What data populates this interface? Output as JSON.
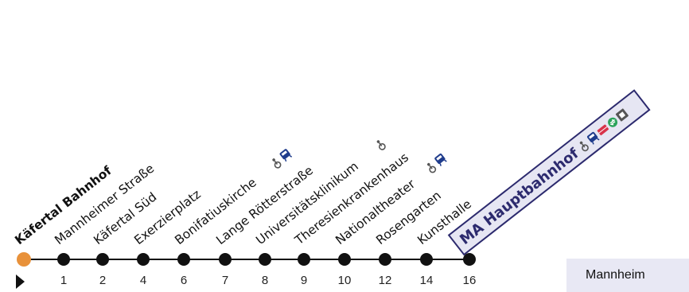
{
  "route": {
    "stops": [
      {
        "name": "Käfertal Bahnhof",
        "minutes": null,
        "origin": true,
        "icons": []
      },
      {
        "name": "Mannheimer Straße",
        "minutes": "1",
        "icons": []
      },
      {
        "name": "Käfertal Süd",
        "minutes": "2",
        "icons": []
      },
      {
        "name": "Exerzierplatz",
        "minutes": "4",
        "icons": []
      },
      {
        "name": "Bonifatiuskirche",
        "minutes": "6",
        "icons": [
          "wheelchair-icon",
          "bus-icon"
        ]
      },
      {
        "name": "Lange Rötterstraße",
        "minutes": "7",
        "icons": []
      },
      {
        "name": "Universitätsklinikum",
        "minutes": "8",
        "icons": [
          "wheelchair-icon"
        ]
      },
      {
        "name": "Theresienkrankenhaus",
        "minutes": "9",
        "icons": []
      },
      {
        "name": "Nationaltheater",
        "minutes": "10",
        "icons": [
          "wheelchair-icon",
          "bus-icon"
        ]
      },
      {
        "name": "Rosengarten",
        "minutes": "12",
        "icons": []
      },
      {
        "name": "Kunsthalle",
        "minutes": "14",
        "icons": []
      },
      {
        "name": "MA Hauptbahnhof",
        "minutes": "16",
        "highlighted": true,
        "icons": [
          "wheelchair-icon",
          "bus-icon",
          "train-icon",
          "exchange-icon",
          "parking-icon"
        ]
      }
    ]
  },
  "note": {
    "text": "Mannheim"
  },
  "colors": {
    "origin_dot": "#e8913a",
    "stop_dot": "#111111",
    "line": "#111111",
    "highlight_fill": "#e6e6f3",
    "highlight_border": "#2c2a6e",
    "icon_blue": "#1f3c8c",
    "icon_red": "#d8334a",
    "icon_green": "#2aa35a",
    "icon_grey": "#555555"
  }
}
